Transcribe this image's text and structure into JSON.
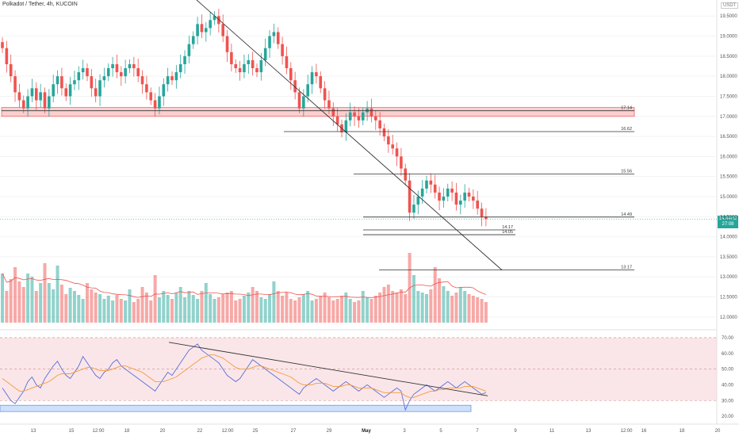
{
  "header": {
    "title": "Polkadot / Tether, 4h, KUCOIN",
    "currency": "USDT"
  },
  "colors": {
    "up": "#26a69a",
    "down": "#ef5350",
    "trendline": "#333333",
    "zone": "#f7a8a8",
    "rsi": "#5b6fd6",
    "rsi_ma": "#f59a3c"
  },
  "current_price": {
    "value": 14.44,
    "label": "14.44H2",
    "countdown": "27:08"
  },
  "chart_data": [
    {
      "type": "candlestick",
      "title": "Polkadot / Tether, 4h, KUCOIN",
      "xlabel": "",
      "ylabel": "",
      "x_ticks": [
        "13",
        "15",
        "12:00",
        "18",
        "20",
        "22",
        "12:00",
        "25",
        "27",
        "29",
        "May",
        "3",
        "5",
        "7",
        "9",
        "11",
        "13",
        "12:00",
        "16",
        "18",
        "20"
      ],
      "y_ticks": [
        12.0,
        12.5,
        13.0,
        13.5,
        14.0,
        14.5,
        15.0,
        15.5,
        16.0,
        16.5,
        17.0,
        17.5,
        18.0,
        18.5,
        19.0,
        19.5
      ],
      "y_tick_labels": [
        "12.0000",
        "12.5000",
        "13.0000",
        "13.5000",
        "14.0000",
        "14.5000",
        "15.0000",
        "15.5000",
        "16.0000",
        "16.5000",
        "17.0000",
        "17.5000",
        "18.0000",
        "18.5000",
        "19.0000",
        "19.5000"
      ],
      "ylim": [
        11.7,
        19.9
      ],
      "price_levels": [
        {
          "label": "17.14",
          "value": 17.14
        },
        {
          "label": "16.62",
          "value": 16.62
        },
        {
          "label": "15.56",
          "value": 15.56
        },
        {
          "label": "14.49",
          "value": 14.49
        },
        {
          "label": "14.17",
          "value": 14.17
        },
        {
          "label": "14.05",
          "value": 14.05
        },
        {
          "label": "13.17",
          "value": 13.17
        }
      ],
      "resistance_zone": [
        17.0,
        17.22
      ],
      "candle_closes": [
        18.7,
        18.3,
        18.0,
        17.6,
        17.4,
        17.2,
        17.5,
        17.7,
        17.4,
        17.6,
        17.2,
        17.5,
        17.8,
        18.0,
        17.7,
        17.5,
        17.8,
        17.9,
        18.1,
        18.2,
        18.0,
        17.7,
        17.5,
        17.9,
        18.0,
        18.2,
        18.3,
        18.1,
        18.0,
        18.2,
        18.3,
        18.2,
        18.0,
        17.8,
        17.6,
        17.4,
        17.2,
        17.5,
        17.8,
        18.0,
        17.9,
        18.1,
        18.3,
        18.5,
        18.8,
        19.0,
        19.3,
        19.1,
        19.2,
        19.4,
        19.5,
        19.3,
        19.0,
        18.6,
        18.3,
        18.2,
        18.1,
        18.3,
        18.4,
        18.2,
        18.1,
        18.4,
        18.7,
        19.0,
        19.1,
        18.8,
        18.5,
        18.2,
        17.9,
        17.6,
        17.2,
        17.5,
        17.8,
        18.1,
        18.0,
        17.7,
        17.4,
        17.2,
        17.0,
        16.8,
        16.6,
        16.9,
        17.1,
        17.0,
        16.9,
        17.1,
        17.2,
        17.0,
        16.9,
        16.7,
        16.5,
        16.3,
        16.2,
        16.0,
        15.7,
        15.4,
        14.6,
        14.8,
        15.0,
        15.2,
        15.4,
        15.3,
        15.1,
        14.9,
        15.0,
        15.2,
        15.1,
        14.8,
        14.9,
        15.1,
        15.0,
        14.9,
        14.7,
        14.5,
        14.44
      ]
    },
    {
      "type": "bar",
      "title": "",
      "xlabel": "",
      "ylabel": "",
      "values": [
        62,
        40,
        55,
        70,
        52,
        45,
        62,
        58,
        40,
        50,
        75,
        50,
        42,
        72,
        48,
        36,
        44,
        40,
        35,
        30,
        50,
        42,
        38,
        36,
        30,
        34,
        28,
        35,
        30,
        28,
        42,
        26,
        30,
        45,
        38,
        28,
        60,
        32,
        40,
        35,
        30,
        38,
        45,
        32,
        40,
        35,
        30,
        40,
        50,
        36,
        30,
        32,
        36,
        38,
        40,
        28,
        30,
        34,
        38,
        45,
        40,
        32,
        30,
        36,
        52,
        40,
        34,
        38,
        30,
        28,
        32,
        36,
        40,
        28,
        30,
        34,
        38,
        32,
        28,
        30,
        34,
        38,
        30,
        26,
        28,
        40,
        32,
        30,
        34,
        38,
        45,
        48,
        40,
        38,
        42,
        36,
        88,
        60,
        40,
        38,
        36,
        42,
        70,
        56,
        46,
        40,
        34,
        38,
        45,
        40,
        36,
        34,
        32,
        30,
        26
      ],
      "ylim": [
        0,
        100
      ]
    },
    {
      "type": "line",
      "title": "",
      "xlabel": "",
      "ylabel": "",
      "y_ticks": [
        20,
        30,
        40,
        50,
        60,
        70
      ],
      "y_tick_labels": [
        "20.00",
        "30.00",
        "40.00",
        "50.00",
        "60.00",
        "70.00"
      ],
      "ylim": [
        15,
        75
      ],
      "bands": {
        "upper": 70,
        "middle": 50,
        "lower": 30
      },
      "series": [
        {
          "values": [
            38,
            34,
            30,
            28,
            32,
            36,
            42,
            45,
            40,
            38,
            44,
            48,
            52,
            55,
            50,
            46,
            44,
            48,
            52,
            58,
            54,
            50,
            46,
            44,
            48,
            50,
            54,
            56,
            52,
            50,
            48,
            46,
            44,
            42,
            40,
            38,
            36,
            40,
            44,
            48,
            46,
            50,
            54,
            58,
            62,
            64,
            66,
            62,
            60,
            58,
            56,
            54,
            50,
            46,
            44,
            42,
            44,
            48,
            52,
            56,
            54,
            52,
            50,
            48,
            46,
            44,
            42,
            40,
            38,
            36,
            34,
            38,
            40,
            42,
            44,
            42,
            40,
            38,
            36,
            38,
            40,
            42,
            40,
            38,
            36,
            38,
            40,
            38,
            36,
            34,
            32,
            34,
            36,
            38,
            36,
            24,
            30,
            34,
            36,
            38,
            40,
            38,
            36,
            38,
            40,
            42,
            40,
            38,
            40,
            42,
            40,
            38,
            36,
            34,
            35
          ]
        },
        {
          "values": [
            44,
            42,
            40,
            38,
            36,
            36,
            37,
            38,
            39,
            40,
            41,
            42,
            44,
            46,
            47,
            47,
            47,
            48,
            49,
            50,
            51,
            51,
            50,
            49,
            49,
            49,
            50,
            51,
            52,
            52,
            51,
            50,
            49,
            48,
            46,
            44,
            42,
            42,
            42,
            43,
            44,
            45,
            47,
            49,
            51,
            53,
            55,
            57,
            58,
            59,
            59,
            58,
            57,
            55,
            53,
            51,
            50,
            50,
            50,
            51,
            52,
            52,
            51,
            50,
            49,
            48,
            47,
            46,
            45,
            43,
            41,
            40,
            40,
            40,
            41,
            41,
            41,
            40,
            39,
            39,
            39,
            40,
            40,
            39,
            38,
            38,
            38,
            38,
            37,
            36,
            35,
            35,
            35,
            35,
            35,
            33,
            32,
            32,
            33,
            34,
            35,
            36,
            36,
            37,
            37,
            38,
            38,
            38,
            38,
            39,
            39,
            39,
            38,
            37,
            36
          ]
        }
      ]
    }
  ]
}
